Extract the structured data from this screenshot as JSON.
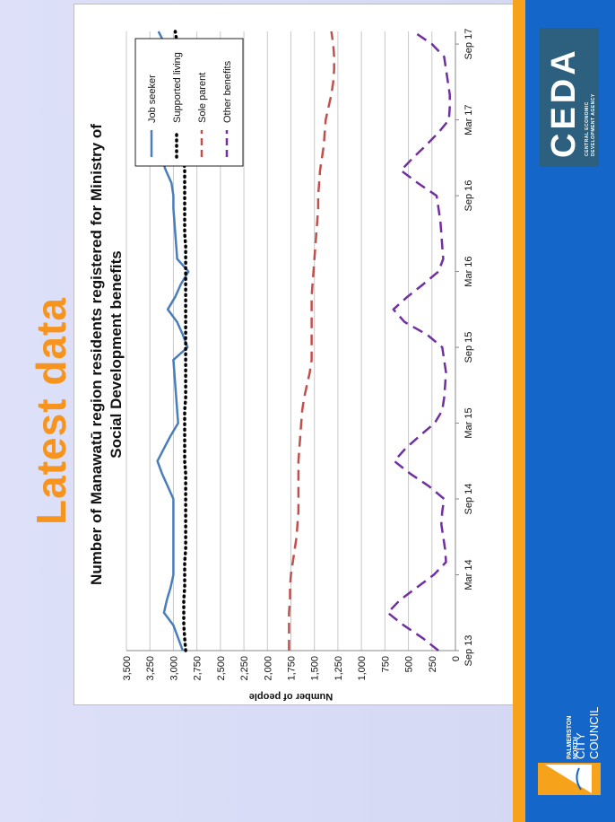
{
  "slide": {
    "title": "Latest data",
    "brand_left_line1": "PALMERSTON NORTH",
    "brand_left_line2": "CITY COUNCIL",
    "brand_right": "CEDA",
    "brand_right_sub1": "CENTRAL ECONOMIC",
    "brand_right_sub2": "DEVELOPMENT AGENCY",
    "accent_color": "#f7941d",
    "band_color": "#1466c8"
  },
  "chart_data": {
    "type": "line",
    "title_line1": "Number of Manawatū region residents registered for Ministry of",
    "title_line2": "Social Development benefits",
    "xlabel": "",
    "ylabel": "Number of people",
    "ylim": [
      0,
      3500
    ],
    "yticks": [
      "0",
      "250",
      "500",
      "750",
      "1,000",
      "1,250",
      "1,500",
      "1,750",
      "2,000",
      "2,250",
      "2,500",
      "2,750",
      "3,000",
      "3,250",
      "3,500"
    ],
    "xtick_labels": [
      "Sep 13",
      "Mar 14",
      "Sep 14",
      "Mar 15",
      "Sep 15",
      "Mar 16",
      "Sep 16",
      "Mar 17",
      "Sep 17"
    ],
    "grid": true,
    "legend_position": "top-right",
    "x": [
      "Sep 13",
      "Oct 13",
      "Nov 13",
      "Dec 13",
      "Jan 14",
      "Feb 14",
      "Mar 14",
      "Apr 14",
      "May 14",
      "Jun 14",
      "Jul 14",
      "Aug 14",
      "Sep 14",
      "Oct 14",
      "Nov 14",
      "Dec 14",
      "Jan 15",
      "Feb 15",
      "Mar 15",
      "Apr 15",
      "May 15",
      "Jun 15",
      "Jul 15",
      "Aug 15",
      "Sep 15",
      "Oct 15",
      "Nov 15",
      "Dec 15",
      "Jan 16",
      "Feb 16",
      "Mar 16",
      "Apr 16",
      "May 16",
      "Jun 16",
      "Jul 16",
      "Aug 16",
      "Sep 16",
      "Oct 16",
      "Nov 16",
      "Dec 16",
      "Jan 17",
      "Feb 17",
      "Mar 17",
      "Apr 17",
      "May 17",
      "Jun 17",
      "Jul 17",
      "Aug 17",
      "Sep 17",
      "Oct 17"
    ],
    "series": [
      {
        "name": "Job seeker",
        "color": "#4a7ebb",
        "style": "solid",
        "values": [
          2900,
          2950,
          3000,
          3100,
          3070,
          3030,
          3000,
          3000,
          3000,
          3000,
          3000,
          3000,
          3000,
          3060,
          3120,
          3170,
          3100,
          3030,
          2950,
          2960,
          2970,
          2980,
          2990,
          3000,
          2850,
          2900,
          2960,
          3060,
          2980,
          2920,
          2840,
          2960,
          2970,
          2980,
          2990,
          3000,
          3000,
          3020,
          3080,
          3130,
          3080,
          3030,
          3000,
          3010,
          3010,
          3010,
          2950,
          3020,
          3090,
          3160
        ]
      },
      {
        "name": "Supported living",
        "color": "#000000",
        "style": "dotted",
        "values": [
          2870,
          2880,
          2890,
          2890,
          2890,
          2880,
          2880,
          2880,
          2870,
          2870,
          2870,
          2870,
          2870,
          2870,
          2870,
          2880,
          2880,
          2880,
          2880,
          2880,
          2870,
          2870,
          2870,
          2870,
          2870,
          2870,
          2870,
          2870,
          2870,
          2870,
          2870,
          2870,
          2870,
          2880,
          2880,
          2880,
          2880,
          2880,
          2880,
          2890,
          2890,
          2900,
          2900,
          2900,
          2910,
          2920,
          2930,
          2940,
          2960,
          2980
        ]
      },
      {
        "name": "Sole parent",
        "color": "#c0504d",
        "style": "dashed",
        "values": [
          1770,
          1770,
          1770,
          1770,
          1760,
          1760,
          1750,
          1730,
          1710,
          1690,
          1680,
          1670,
          1670,
          1670,
          1670,
          1670,
          1660,
          1650,
          1640,
          1630,
          1610,
          1580,
          1550,
          1530,
          1530,
          1530,
          1530,
          1530,
          1530,
          1520,
          1510,
          1500,
          1490,
          1480,
          1470,
          1460,
          1460,
          1450,
          1440,
          1420,
          1400,
          1390,
          1380,
          1350,
          1320,
          1300,
          1290,
          1290,
          1300,
          1320
        ]
      },
      {
        "name": "Other benefits",
        "color": "#7030a0",
        "style": "dashed",
        "values": [
          180,
          350,
          550,
          720,
          590,
          410,
          230,
          100,
          110,
          130,
          150,
          140,
          120,
          280,
          480,
          650,
          530,
          380,
          220,
          140,
          120,
          110,
          100,
          120,
          140,
          300,
          540,
          660,
          510,
          340,
          180,
          130,
          140,
          150,
          160,
          180,
          200,
          400,
          580,
          450,
          310,
          180,
          70,
          60,
          60,
          80,
          100,
          120,
          250,
          450
        ]
      }
    ]
  }
}
